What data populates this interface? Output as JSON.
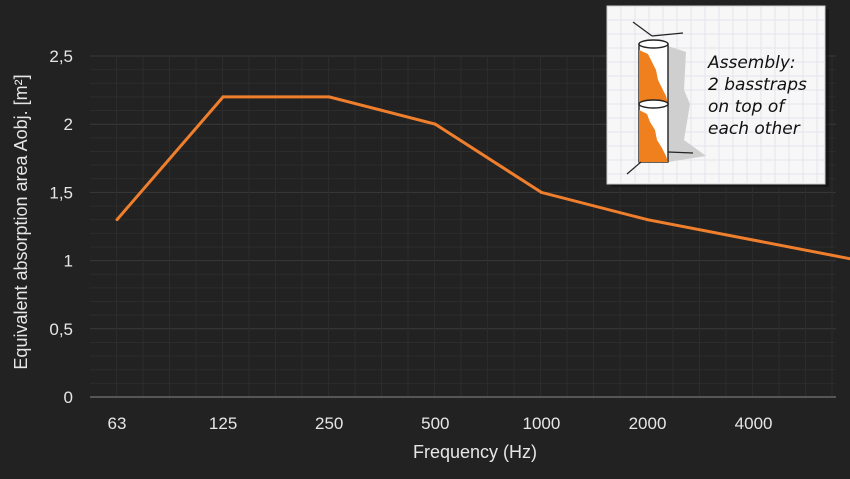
{
  "chart_data": {
    "type": "line",
    "categories": [
      "63",
      "125",
      "250",
      "500",
      "1000",
      "2000",
      "4000",
      ""
    ],
    "series": [
      {
        "values": [
          1.3,
          2.2,
          2.2,
          2.0,
          1.5,
          1.3,
          1.15,
          1.0
        ]
      }
    ],
    "x_tick_labels": [
      "63",
      "125",
      "250",
      "500",
      "1000",
      "2000",
      "4000"
    ],
    "y_ticks": [
      0,
      0.5,
      1,
      1.5,
      2,
      2.5
    ],
    "y_tick_labels": [
      "0",
      "0,5",
      "1",
      "1,5",
      "2",
      "2,5"
    ],
    "ylim": [
      0,
      2.5
    ],
    "xlabel": "Frequency (Hz)",
    "ylabel": "Equivalent absorption area Aobj. [m²]",
    "grid": true,
    "line_color": "#f07f2d",
    "background": "#222222",
    "inset": {
      "lines": [
        "Assembly:",
        "2 basstraps",
        "on top of",
        "each other"
      ]
    }
  }
}
